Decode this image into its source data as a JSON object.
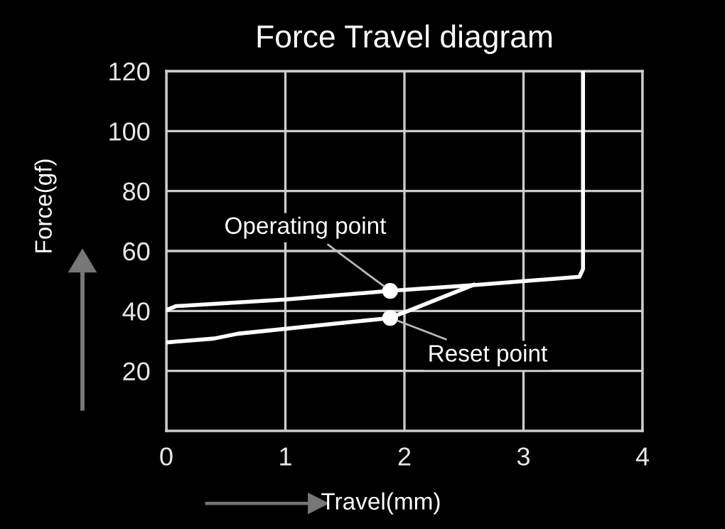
{
  "chart_data": {
    "type": "line",
    "title": "Force Travel diagram",
    "xlabel": "Travel(mm)",
    "ylabel": "Force(gf)",
    "series": [
      {
        "color": "#ffffff",
        "x": [
          0,
          0.08,
          1.0,
          1.88,
          2.6,
          3.47,
          3.5,
          3.5
        ],
        "values": [
          40.3,
          41.6,
          43.8,
          46.7,
          48.7,
          51.4,
          54,
          120
        ]
      },
      {
        "color": "#ffffff",
        "x": [
          0,
          0.4,
          0.6,
          1.47,
          1.87,
          2.03,
          2.58
        ],
        "values": [
          29.5,
          30.8,
          32.4,
          36,
          37.6,
          40,
          48.7
        ]
      }
    ],
    "annotations": [
      {
        "text": "Operating point",
        "x": 1.88,
        "y": 46.7
      },
      {
        "text": "Reset point",
        "x": 1.88,
        "y": 37.7
      }
    ],
    "xlim": [
      0,
      4
    ],
    "ylim": [
      0,
      120
    ],
    "xticks": [
      0,
      1,
      2,
      3,
      4
    ],
    "yticks": [
      20,
      40,
      60,
      80,
      100,
      120
    ],
    "grid": true,
    "line_style": "solid",
    "marker": "none"
  }
}
